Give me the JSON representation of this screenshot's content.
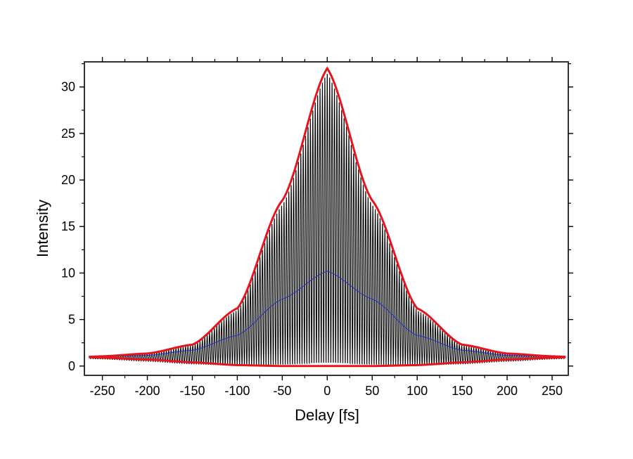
{
  "chart_data": {
    "type": "line",
    "title": "",
    "xlabel": "Delay [fs]",
    "ylabel": "Intensity",
    "xlim": [
      -270,
      268
    ],
    "ylim": [
      -1.0,
      32.7
    ],
    "xticks": [
      -250,
      -200,
      -150,
      -100,
      -50,
      0,
      50,
      100,
      150,
      200,
      250
    ],
    "xtick_labels": [
      "-250",
      "-200",
      "-150",
      "-100",
      "-50",
      "0",
      "50",
      "100",
      "150",
      "200",
      "250"
    ],
    "yticks": [
      0,
      5,
      10,
      15,
      20,
      25,
      30
    ],
    "ytick_labels": [
      "0",
      "5",
      "10",
      "15",
      "20",
      "25",
      "30"
    ],
    "grid": false,
    "legend": "none",
    "series": [
      {
        "role": "fringe-resolved autocorrelation trace",
        "color": "#000000",
        "fringe_period_fs": 2.67,
        "x": [
          -265,
          -250,
          -200,
          -150,
          -100,
          -50,
          0,
          50,
          100,
          150,
          200,
          250,
          265
        ],
        "upper_y": [
          1.0,
          1.05,
          1.3,
          2.2,
          6.0,
          17.5,
          31.8,
          17.5,
          6.0,
          2.2,
          1.3,
          1.05,
          1.0
        ],
        "lower_y": [
          0.8,
          0.75,
          0.5,
          0.2,
          0.0,
          0.0,
          0.0,
          0.0,
          0.0,
          0.2,
          0.5,
          0.75,
          0.8
        ]
      },
      {
        "role": "upper envelope fit",
        "color": "#e8141c",
        "x": [
          -265,
          -250,
          -200,
          -150,
          -100,
          -50,
          0,
          50,
          100,
          150,
          200,
          250,
          265
        ],
        "y": [
          1.0,
          1.05,
          1.35,
          2.3,
          6.2,
          17.8,
          32.0,
          17.8,
          6.2,
          2.3,
          1.35,
          1.05,
          1.0
        ]
      },
      {
        "role": "lower envelope fit",
        "color": "#e8141c",
        "x": [
          -265,
          -250,
          -200,
          -150,
          -100,
          -50,
          0,
          50,
          100,
          150,
          200,
          250,
          265
        ],
        "y": [
          0.95,
          0.9,
          0.7,
          0.4,
          0.1,
          0.0,
          0.0,
          0.0,
          0.1,
          0.4,
          0.7,
          0.9,
          0.95
        ]
      },
      {
        "role": "intensity autocorrelation (fringe average)",
        "color": "#1f2fd0",
        "x": [
          -265,
          -250,
          -200,
          -150,
          -100,
          -50,
          0,
          50,
          100,
          150,
          200,
          250,
          265
        ],
        "y": [
          1.0,
          1.02,
          1.15,
          1.7,
          3.3,
          7.2,
          10.2,
          7.2,
          3.3,
          1.7,
          1.15,
          1.02,
          1.0
        ]
      }
    ]
  }
}
